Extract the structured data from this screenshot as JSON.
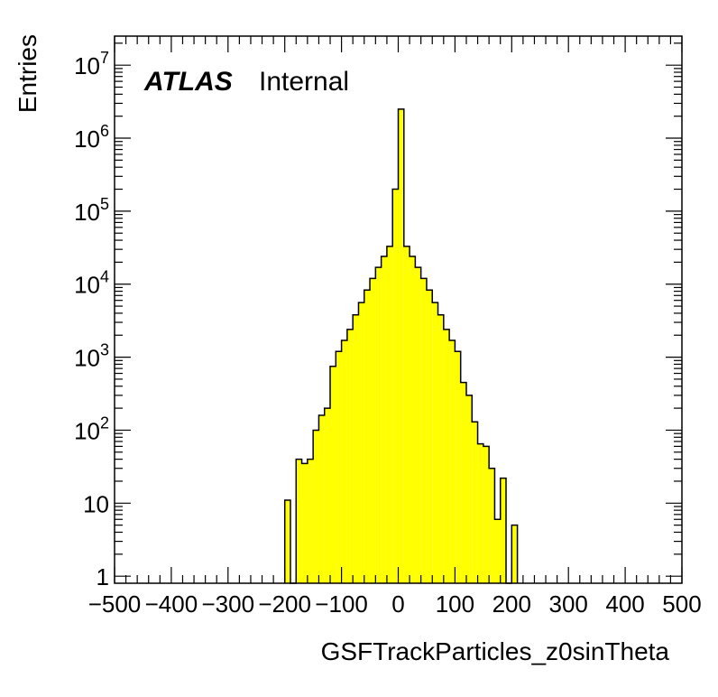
{
  "chart_data": {
    "type": "bar",
    "xlabel": "GSFTrackParticles_z0sinTheta",
    "ylabel": "Entries",
    "xlim": [
      -500,
      500
    ],
    "ylim": [
      0.8,
      25000000
    ],
    "log_y": true,
    "grid": false,
    "x_ticks": [
      -500,
      -400,
      -300,
      -200,
      -100,
      0,
      100,
      200,
      300,
      400,
      500
    ],
    "x_tick_labels": [
      "−500",
      "−400",
      "−300",
      "−200",
      "−100",
      "0",
      "100",
      "200",
      "300",
      "400",
      "500"
    ],
    "y_ticks": [
      {
        "value": 1,
        "base": "1",
        "exp": ""
      },
      {
        "value": 10,
        "base": "10",
        "exp": ""
      },
      {
        "value": 100,
        "base": "10",
        "exp": "2"
      },
      {
        "value": 1000,
        "base": "10",
        "exp": "3"
      },
      {
        "value": 10000,
        "base": "10",
        "exp": "4"
      },
      {
        "value": 100000,
        "base": "10",
        "exp": "5"
      },
      {
        "value": 1000000,
        "base": "10",
        "exp": "6"
      },
      {
        "value": 10000000,
        "base": "10",
        "exp": "7"
      }
    ],
    "fill_color": "#ffff00",
    "line_color": "#000000",
    "annotation": {
      "atlas": "ATLAS",
      "internal": "Internal"
    },
    "bins": [
      {
        "x0": -200,
        "x1": -190,
        "y": 11
      },
      {
        "x0": -190,
        "x1": -180,
        "y": 0
      },
      {
        "x0": -180,
        "x1": -170,
        "y": 40
      },
      {
        "x0": -170,
        "x1": -160,
        "y": 35
      },
      {
        "x0": -160,
        "x1": -150,
        "y": 40
      },
      {
        "x0": -150,
        "x1": -140,
        "y": 100
      },
      {
        "x0": -140,
        "x1": -130,
        "y": 160
      },
      {
        "x0": -130,
        "x1": -120,
        "y": 200
      },
      {
        "x0": -120,
        "x1": -110,
        "y": 750
      },
      {
        "x0": -110,
        "x1": -100,
        "y": 1200
      },
      {
        "x0": -100,
        "x1": -90,
        "y": 1700
      },
      {
        "x0": -90,
        "x1": -80,
        "y": 2400
      },
      {
        "x0": -80,
        "x1": -70,
        "y": 3800
      },
      {
        "x0": -70,
        "x1": -60,
        "y": 5600
      },
      {
        "x0": -60,
        "x1": -50,
        "y": 8300
      },
      {
        "x0": -50,
        "x1": -40,
        "y": 12000
      },
      {
        "x0": -40,
        "x1": -30,
        "y": 17000
      },
      {
        "x0": -30,
        "x1": -20,
        "y": 24000
      },
      {
        "x0": -20,
        "x1": -10,
        "y": 33000
      },
      {
        "x0": -10,
        "x1": 0,
        "y": 200000
      },
      {
        "x0": 0,
        "x1": 10,
        "y": 2500000
      },
      {
        "x0": 10,
        "x1": 20,
        "y": 33000
      },
      {
        "x0": 20,
        "x1": 30,
        "y": 24000
      },
      {
        "x0": 30,
        "x1": 40,
        "y": 17000
      },
      {
        "x0": 40,
        "x1": 50,
        "y": 12000
      },
      {
        "x0": 50,
        "x1": 60,
        "y": 8300
      },
      {
        "x0": 60,
        "x1": 70,
        "y": 5600
      },
      {
        "x0": 70,
        "x1": 80,
        "y": 3800
      },
      {
        "x0": 80,
        "x1": 90,
        "y": 2400
      },
      {
        "x0": 90,
        "x1": 100,
        "y": 1700
      },
      {
        "x0": 100,
        "x1": 110,
        "y": 1200
      },
      {
        "x0": 110,
        "x1": 120,
        "y": 450
      },
      {
        "x0": 120,
        "x1": 130,
        "y": 300
      },
      {
        "x0": 130,
        "x1": 140,
        "y": 130
      },
      {
        "x0": 140,
        "x1": 150,
        "y": 65
      },
      {
        "x0": 150,
        "x1": 160,
        "y": 60
      },
      {
        "x0": 160,
        "x1": 170,
        "y": 30
      },
      {
        "x0": 170,
        "x1": 180,
        "y": 6
      },
      {
        "x0": 180,
        "x1": 190,
        "y": 22
      },
      {
        "x0": 190,
        "x1": 200,
        "y": 0
      },
      {
        "x0": 200,
        "x1": 210,
        "y": 5
      }
    ]
  }
}
